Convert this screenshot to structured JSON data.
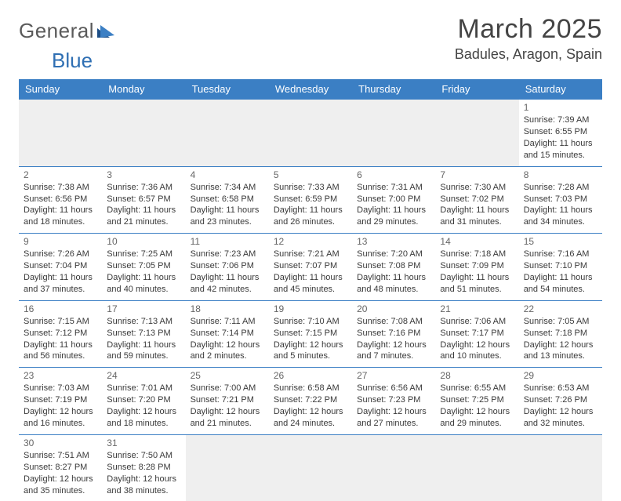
{
  "logo": {
    "text1": "General",
    "text2": "Blue"
  },
  "header": {
    "month": "March 2025",
    "location": "Badules, Aragon, Spain"
  },
  "colors": {
    "header_bg": "#3b7fc4",
    "header_text": "#ffffff",
    "row_border": "#3b7fc4",
    "empty_bg": "#efefef",
    "title_color": "#444444",
    "logo_gray": "#5a5a5a",
    "logo_blue": "#2f6fb3"
  },
  "columns": [
    "Sunday",
    "Monday",
    "Tuesday",
    "Wednesday",
    "Thursday",
    "Friday",
    "Saturday"
  ],
  "weeks": [
    [
      null,
      null,
      null,
      null,
      null,
      null,
      {
        "n": "1",
        "sr": "Sunrise: 7:39 AM",
        "ss": "Sunset: 6:55 PM",
        "d1": "Daylight: 11 hours",
        "d2": "and 15 minutes."
      }
    ],
    [
      {
        "n": "2",
        "sr": "Sunrise: 7:38 AM",
        "ss": "Sunset: 6:56 PM",
        "d1": "Daylight: 11 hours",
        "d2": "and 18 minutes."
      },
      {
        "n": "3",
        "sr": "Sunrise: 7:36 AM",
        "ss": "Sunset: 6:57 PM",
        "d1": "Daylight: 11 hours",
        "d2": "and 21 minutes."
      },
      {
        "n": "4",
        "sr": "Sunrise: 7:34 AM",
        "ss": "Sunset: 6:58 PM",
        "d1": "Daylight: 11 hours",
        "d2": "and 23 minutes."
      },
      {
        "n": "5",
        "sr": "Sunrise: 7:33 AM",
        "ss": "Sunset: 6:59 PM",
        "d1": "Daylight: 11 hours",
        "d2": "and 26 minutes."
      },
      {
        "n": "6",
        "sr": "Sunrise: 7:31 AM",
        "ss": "Sunset: 7:00 PM",
        "d1": "Daylight: 11 hours",
        "d2": "and 29 minutes."
      },
      {
        "n": "7",
        "sr": "Sunrise: 7:30 AM",
        "ss": "Sunset: 7:02 PM",
        "d1": "Daylight: 11 hours",
        "d2": "and 31 minutes."
      },
      {
        "n": "8",
        "sr": "Sunrise: 7:28 AM",
        "ss": "Sunset: 7:03 PM",
        "d1": "Daylight: 11 hours",
        "d2": "and 34 minutes."
      }
    ],
    [
      {
        "n": "9",
        "sr": "Sunrise: 7:26 AM",
        "ss": "Sunset: 7:04 PM",
        "d1": "Daylight: 11 hours",
        "d2": "and 37 minutes."
      },
      {
        "n": "10",
        "sr": "Sunrise: 7:25 AM",
        "ss": "Sunset: 7:05 PM",
        "d1": "Daylight: 11 hours",
        "d2": "and 40 minutes."
      },
      {
        "n": "11",
        "sr": "Sunrise: 7:23 AM",
        "ss": "Sunset: 7:06 PM",
        "d1": "Daylight: 11 hours",
        "d2": "and 42 minutes."
      },
      {
        "n": "12",
        "sr": "Sunrise: 7:21 AM",
        "ss": "Sunset: 7:07 PM",
        "d1": "Daylight: 11 hours",
        "d2": "and 45 minutes."
      },
      {
        "n": "13",
        "sr": "Sunrise: 7:20 AM",
        "ss": "Sunset: 7:08 PM",
        "d1": "Daylight: 11 hours",
        "d2": "and 48 minutes."
      },
      {
        "n": "14",
        "sr": "Sunrise: 7:18 AM",
        "ss": "Sunset: 7:09 PM",
        "d1": "Daylight: 11 hours",
        "d2": "and 51 minutes."
      },
      {
        "n": "15",
        "sr": "Sunrise: 7:16 AM",
        "ss": "Sunset: 7:10 PM",
        "d1": "Daylight: 11 hours",
        "d2": "and 54 minutes."
      }
    ],
    [
      {
        "n": "16",
        "sr": "Sunrise: 7:15 AM",
        "ss": "Sunset: 7:12 PM",
        "d1": "Daylight: 11 hours",
        "d2": "and 56 minutes."
      },
      {
        "n": "17",
        "sr": "Sunrise: 7:13 AM",
        "ss": "Sunset: 7:13 PM",
        "d1": "Daylight: 11 hours",
        "d2": "and 59 minutes."
      },
      {
        "n": "18",
        "sr": "Sunrise: 7:11 AM",
        "ss": "Sunset: 7:14 PM",
        "d1": "Daylight: 12 hours",
        "d2": "and 2 minutes."
      },
      {
        "n": "19",
        "sr": "Sunrise: 7:10 AM",
        "ss": "Sunset: 7:15 PM",
        "d1": "Daylight: 12 hours",
        "d2": "and 5 minutes."
      },
      {
        "n": "20",
        "sr": "Sunrise: 7:08 AM",
        "ss": "Sunset: 7:16 PM",
        "d1": "Daylight: 12 hours",
        "d2": "and 7 minutes."
      },
      {
        "n": "21",
        "sr": "Sunrise: 7:06 AM",
        "ss": "Sunset: 7:17 PM",
        "d1": "Daylight: 12 hours",
        "d2": "and 10 minutes."
      },
      {
        "n": "22",
        "sr": "Sunrise: 7:05 AM",
        "ss": "Sunset: 7:18 PM",
        "d1": "Daylight: 12 hours",
        "d2": "and 13 minutes."
      }
    ],
    [
      {
        "n": "23",
        "sr": "Sunrise: 7:03 AM",
        "ss": "Sunset: 7:19 PM",
        "d1": "Daylight: 12 hours",
        "d2": "and 16 minutes."
      },
      {
        "n": "24",
        "sr": "Sunrise: 7:01 AM",
        "ss": "Sunset: 7:20 PM",
        "d1": "Daylight: 12 hours",
        "d2": "and 18 minutes."
      },
      {
        "n": "25",
        "sr": "Sunrise: 7:00 AM",
        "ss": "Sunset: 7:21 PM",
        "d1": "Daylight: 12 hours",
        "d2": "and 21 minutes."
      },
      {
        "n": "26",
        "sr": "Sunrise: 6:58 AM",
        "ss": "Sunset: 7:22 PM",
        "d1": "Daylight: 12 hours",
        "d2": "and 24 minutes."
      },
      {
        "n": "27",
        "sr": "Sunrise: 6:56 AM",
        "ss": "Sunset: 7:23 PM",
        "d1": "Daylight: 12 hours",
        "d2": "and 27 minutes."
      },
      {
        "n": "28",
        "sr": "Sunrise: 6:55 AM",
        "ss": "Sunset: 7:25 PM",
        "d1": "Daylight: 12 hours",
        "d2": "and 29 minutes."
      },
      {
        "n": "29",
        "sr": "Sunrise: 6:53 AM",
        "ss": "Sunset: 7:26 PM",
        "d1": "Daylight: 12 hours",
        "d2": "and 32 minutes."
      }
    ],
    [
      {
        "n": "30",
        "sr": "Sunrise: 7:51 AM",
        "ss": "Sunset: 8:27 PM",
        "d1": "Daylight: 12 hours",
        "d2": "and 35 minutes."
      },
      {
        "n": "31",
        "sr": "Sunrise: 7:50 AM",
        "ss": "Sunset: 8:28 PM",
        "d1": "Daylight: 12 hours",
        "d2": "and 38 minutes."
      },
      null,
      null,
      null,
      null,
      null
    ]
  ]
}
